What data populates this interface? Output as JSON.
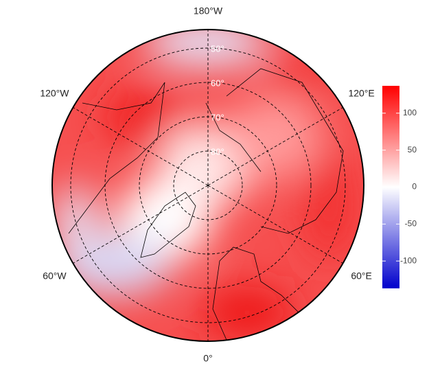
{
  "map": {
    "longitude_labels": [
      {
        "label": "180°W",
        "lon": 180
      },
      {
        "label": "120°W",
        "lon": -120
      },
      {
        "label": "120°E",
        "lon": 120
      },
      {
        "label": "60°W",
        "lon": -60
      },
      {
        "label": "60°E",
        "lon": 60
      },
      {
        "label": "0°",
        "lon": 0
      }
    ],
    "latitude_labels": [
      {
        "label": "50°",
        "lat": 50
      },
      {
        "label": "60°",
        "lat": 60
      },
      {
        "label": "70°",
        "lat": 70
      },
      {
        "label": "80°",
        "lat": 80
      }
    ],
    "colorbar": {
      "lim": [
        -137,
        137
      ],
      "ticks": [
        100,
        50,
        0,
        -50,
        -100
      ],
      "colors": [
        "#0000cc",
        "#ffffff",
        "#ff0000"
      ]
    }
  }
}
